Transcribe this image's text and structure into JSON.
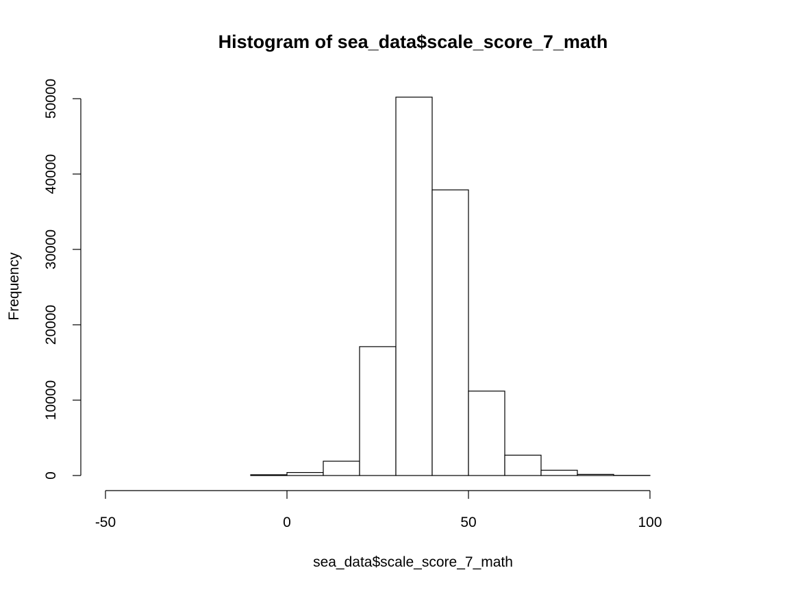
{
  "chart_data": {
    "type": "bar",
    "title": "Histogram of sea_data$scale_score_7_math",
    "xlabel": "sea_data$scale_score_7_math",
    "ylabel": "Frequency",
    "bins": [
      {
        "x0": -50,
        "x1": -40,
        "count": 0
      },
      {
        "x0": -40,
        "x1": -30,
        "count": 0
      },
      {
        "x0": -30,
        "x1": -20,
        "count": 0
      },
      {
        "x0": -20,
        "x1": -10,
        "count": 0
      },
      {
        "x0": -10,
        "x1": 0,
        "count": 100
      },
      {
        "x0": 0,
        "x1": 10,
        "count": 400
      },
      {
        "x0": 10,
        "x1": 20,
        "count": 1900
      },
      {
        "x0": 20,
        "x1": 30,
        "count": 17100
      },
      {
        "x0": 30,
        "x1": 40,
        "count": 50200
      },
      {
        "x0": 40,
        "x1": 50,
        "count": 37900
      },
      {
        "x0": 50,
        "x1": 60,
        "count": 11200
      },
      {
        "x0": 60,
        "x1": 70,
        "count": 2700
      },
      {
        "x0": 70,
        "x1": 80,
        "count": 700
      },
      {
        "x0": 80,
        "x1": 90,
        "count": 150
      },
      {
        "x0": 90,
        "x1": 100,
        "count": 20
      },
      {
        "x0": 100,
        "x1": 110,
        "count": 0
      },
      {
        "x0": 110,
        "x1": 120,
        "count": 0
      }
    ],
    "xlim": [
      -50,
      120
    ],
    "ylim": [
      0,
      50000
    ],
    "x_ticks": [
      -50,
      0,
      50,
      100
    ],
    "x_tick_labels": [
      "-50",
      "0",
      "50",
      "100"
    ],
    "y_ticks": [
      0,
      10000,
      20000,
      30000,
      40000,
      50000
    ],
    "y_tick_labels": [
      "0",
      "10000",
      "20000",
      "30000",
      "40000",
      "50000"
    ],
    "grid": false,
    "bar_fill": "#ffffff",
    "bar_stroke": "#000000"
  }
}
